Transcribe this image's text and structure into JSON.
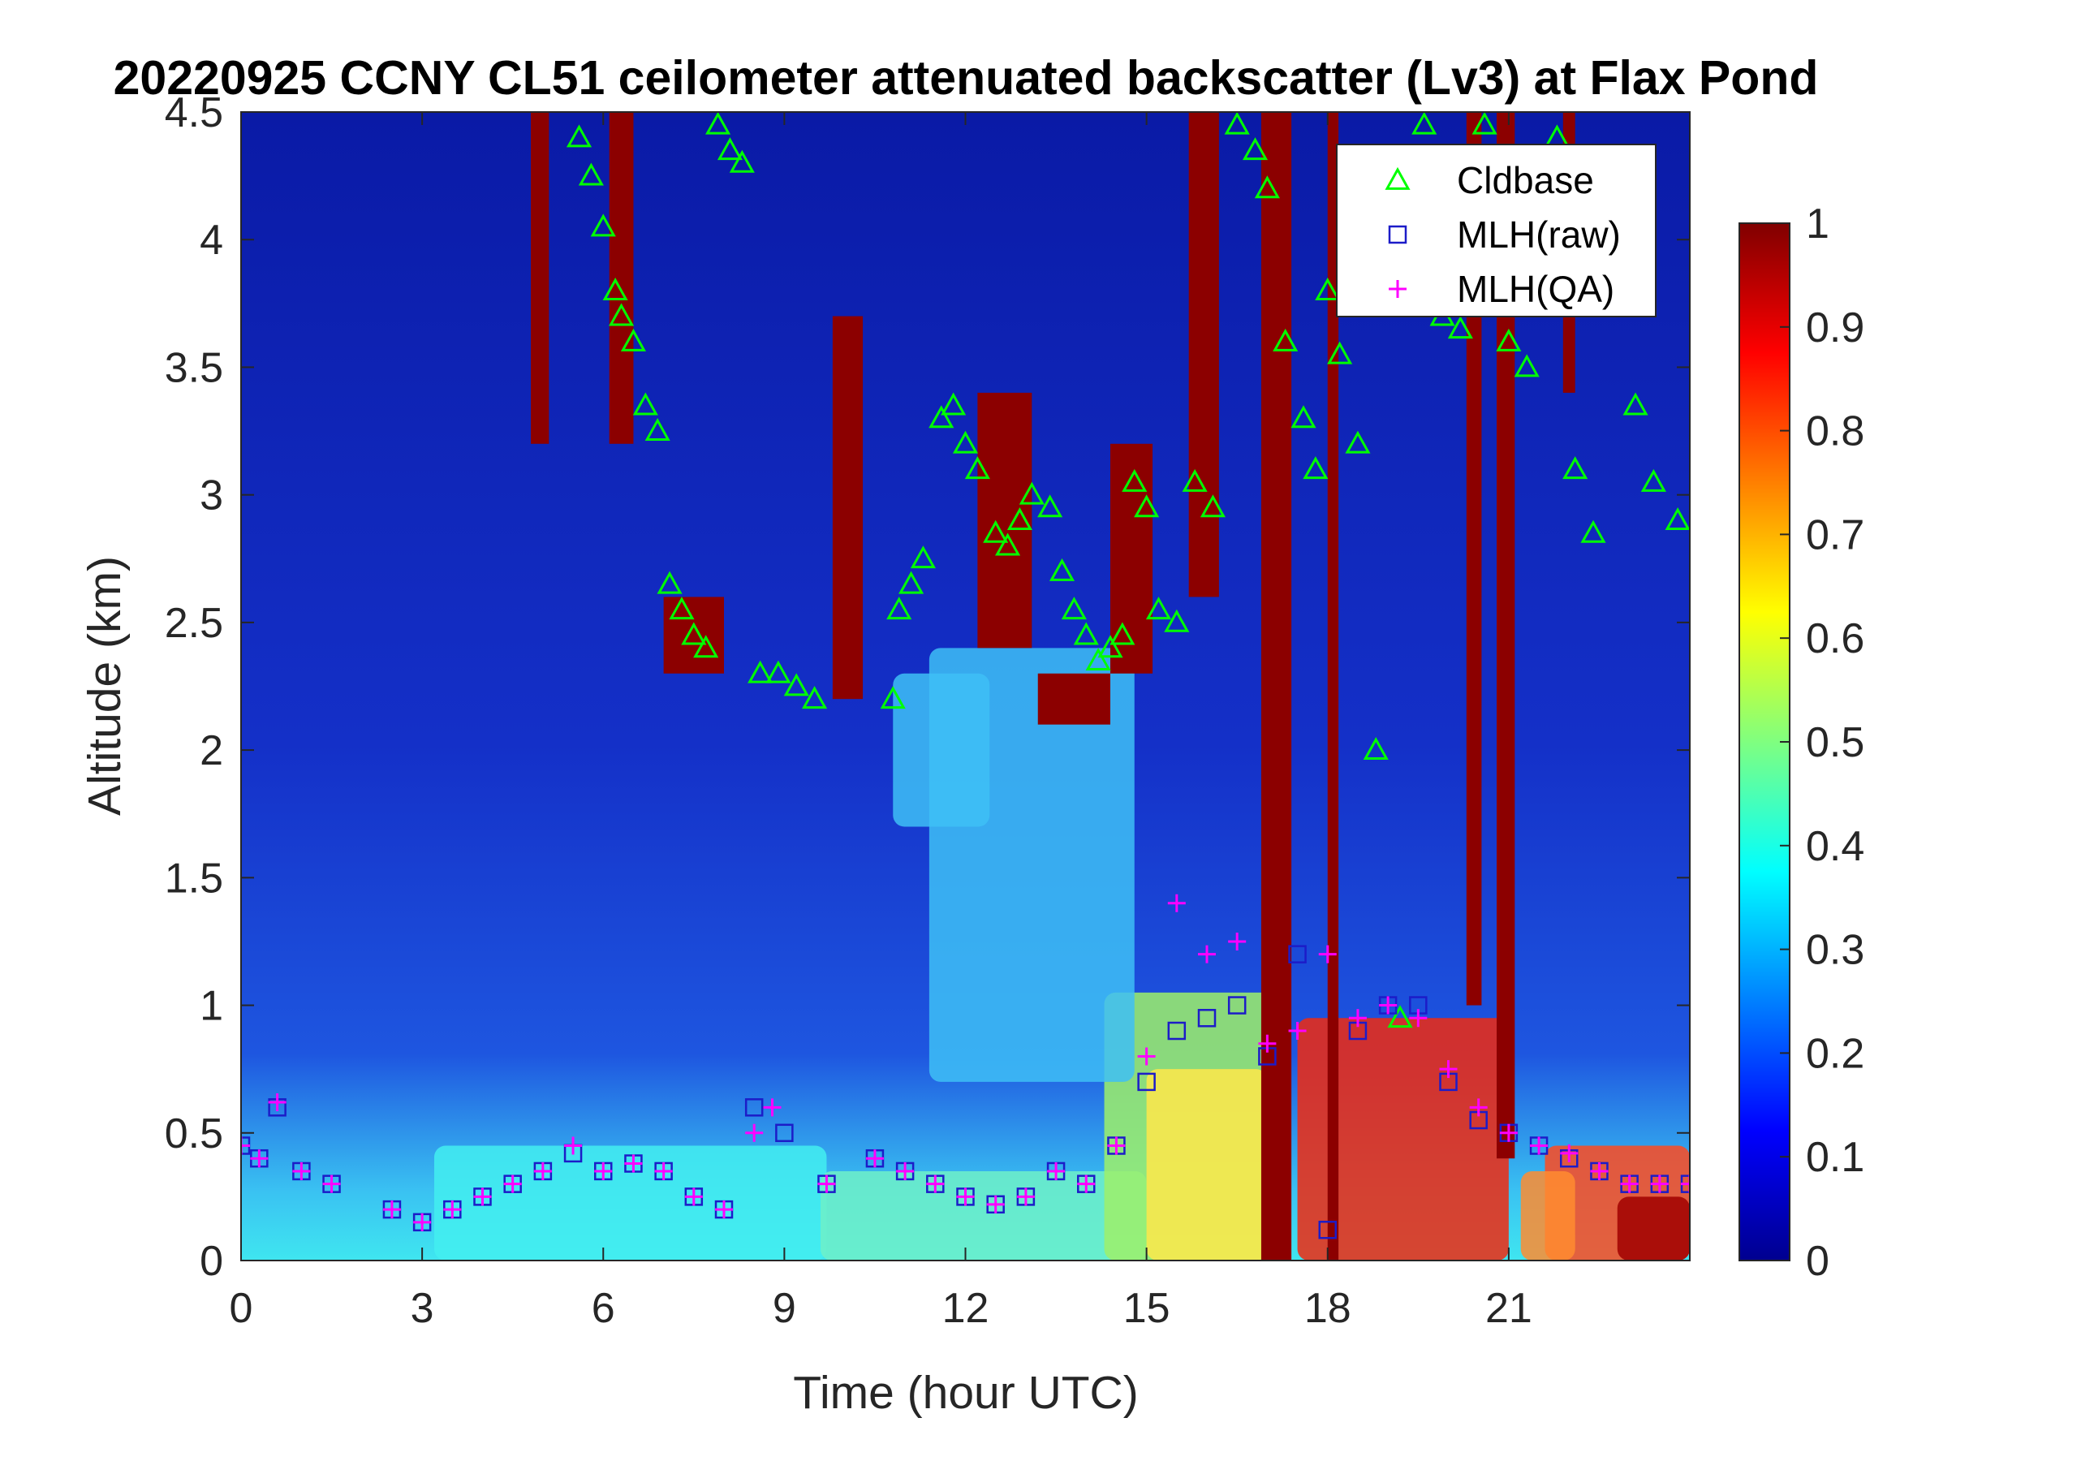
{
  "chart_data": {
    "type": "heatmap",
    "title": "20220925 CCNY CL51 ceilometer attenuated backscatter (Lv3) at Flax Pond",
    "xlabel": "Time (hour UTC)",
    "ylabel": "Altitude (km)",
    "xlim": [
      0,
      24
    ],
    "ylim": [
      0,
      4.5
    ],
    "x_ticks": [
      "0",
      "3",
      "6",
      "9",
      "12",
      "15",
      "18",
      "21"
    ],
    "x_tick_values": [
      0,
      3,
      6,
      9,
      12,
      15,
      18,
      21
    ],
    "y_ticks": [
      "0",
      "0.5",
      "1",
      "1.5",
      "2",
      "2.5",
      "3",
      "3.5",
      "4",
      "4.5"
    ],
    "y_tick_values": [
      0,
      0.5,
      1,
      1.5,
      2,
      2.5,
      3,
      3.5,
      4,
      4.5
    ],
    "colorbar": {
      "colormap": "jet",
      "range": [
        0,
        1
      ],
      "ticks": [
        "0",
        "0.1",
        "0.2",
        "0.3",
        "0.4",
        "0.5",
        "0.6",
        "0.7",
        "0.8",
        "0.9",
        "1"
      ],
      "tick_values": [
        0,
        0.1,
        0.2,
        0.3,
        0.4,
        0.5,
        0.6,
        0.7,
        0.8,
        0.9,
        1
      ]
    },
    "legend": {
      "position": "top-right",
      "entries": [
        "Cldbase",
        "MLH(raw)",
        "MLH(QA)"
      ]
    },
    "series": [
      {
        "name": "Cldbase",
        "marker": "triangle",
        "color": "#00ff00",
        "x": [
          5.6,
          5.8,
          6.0,
          6.2,
          6.3,
          6.5,
          6.7,
          6.9,
          7.1,
          7.3,
          7.5,
          7.7,
          7.9,
          8.1,
          8.3,
          8.6,
          8.9,
          9.2,
          9.5,
          10.8,
          10.9,
          11.1,
          11.3,
          11.6,
          11.8,
          12.0,
          12.2,
          12.5,
          12.7,
          12.9,
          13.1,
          13.4,
          13.6,
          13.8,
          14.0,
          14.2,
          14.4,
          14.6,
          14.8,
          15.0,
          15.2,
          15.5,
          15.8,
          16.1,
          16.5,
          16.8,
          17.0,
          17.3,
          17.6,
          17.8,
          18.0,
          18.2,
          18.5,
          18.8,
          19.2,
          19.6,
          19.9,
          20.2,
          20.6,
          21.0,
          21.3,
          21.8,
          22.1,
          22.4,
          23.1,
          23.4,
          23.8
        ],
        "y": [
          4.4,
          4.25,
          4.05,
          3.8,
          3.7,
          3.6,
          3.35,
          3.25,
          2.65,
          2.55,
          2.45,
          2.4,
          4.45,
          4.35,
          4.3,
          2.3,
          2.3,
          2.25,
          2.2,
          2.2,
          2.55,
          2.65,
          2.75,
          3.3,
          3.35,
          3.2,
          3.1,
          2.85,
          2.8,
          2.9,
          3.0,
          2.95,
          2.7,
          2.55,
          2.45,
          2.35,
          2.4,
          2.45,
          3.05,
          2.95,
          2.55,
          2.5,
          3.05,
          2.95,
          4.45,
          4.35,
          4.2,
          3.6,
          3.3,
          3.1,
          3.8,
          3.55,
          3.2,
          2.0,
          0.95,
          4.45,
          3.7,
          3.65,
          4.45,
          3.6,
          3.5,
          4.4,
          3.1,
          2.85,
          3.35,
          3.05,
          2.9
        ]
      },
      {
        "name": "MLH(raw)",
        "marker": "square",
        "color": "#1c1cc8",
        "x": [
          0.0,
          0.3,
          0.6,
          1.0,
          1.5,
          2.5,
          3.0,
          3.5,
          4.0,
          4.5,
          5.0,
          5.5,
          6.0,
          6.5,
          7.0,
          7.5,
          8.0,
          8.5,
          9.0,
          9.7,
          10.5,
          11.0,
          11.5,
          12.0,
          12.5,
          13.0,
          13.5,
          14.0,
          14.5,
          15.0,
          15.5,
          16.0,
          16.5,
          17.0,
          17.5,
          18.0,
          18.5,
          19.0,
          19.5,
          20.0,
          20.5,
          21.0,
          21.5,
          22.0,
          22.5,
          23.0,
          23.5,
          24.0
        ],
        "y": [
          0.45,
          0.4,
          0.6,
          0.35,
          0.3,
          0.2,
          0.15,
          0.2,
          0.25,
          0.3,
          0.35,
          0.42,
          0.35,
          0.38,
          0.35,
          0.25,
          0.2,
          0.6,
          0.5,
          0.3,
          0.4,
          0.35,
          0.3,
          0.25,
          0.22,
          0.25,
          0.35,
          0.3,
          0.45,
          0.7,
          0.9,
          0.95,
          1.0,
          0.8,
          1.2,
          0.12,
          0.9,
          1.0,
          1.0,
          0.7,
          0.55,
          0.5,
          0.45,
          0.4,
          0.35,
          0.3,
          0.3,
          0.3
        ]
      },
      {
        "name": "MLH(QA)",
        "marker": "plus",
        "color": "#ff00ff",
        "x": [
          0.0,
          0.3,
          0.6,
          1.0,
          1.5,
          2.5,
          3.0,
          3.5,
          4.0,
          4.5,
          5.0,
          5.5,
          6.0,
          6.5,
          7.0,
          7.5,
          8.0,
          8.5,
          8.8,
          9.7,
          10.5,
          11.0,
          11.5,
          12.0,
          12.5,
          13.0,
          13.5,
          14.0,
          14.5,
          15.0,
          15.5,
          16.0,
          16.5,
          17.0,
          17.5,
          18.0,
          18.5,
          19.0,
          19.5,
          20.0,
          20.5,
          21.0,
          21.5,
          22.0,
          22.5,
          23.0,
          23.5,
          24.0
        ],
        "y": [
          0.45,
          0.4,
          0.62,
          0.35,
          0.3,
          0.2,
          0.15,
          0.2,
          0.25,
          0.3,
          0.35,
          0.45,
          0.35,
          0.38,
          0.35,
          0.25,
          0.2,
          0.5,
          0.6,
          0.3,
          0.4,
          0.35,
          0.3,
          0.25,
          0.22,
          0.25,
          0.35,
          0.3,
          0.45,
          0.8,
          1.4,
          1.2,
          1.25,
          0.85,
          0.9,
          1.2,
          0.95,
          1.0,
          0.95,
          0.75,
          0.6,
          0.5,
          0.45,
          0.42,
          0.35,
          0.3,
          0.3,
          0.3
        ]
      }
    ]
  }
}
